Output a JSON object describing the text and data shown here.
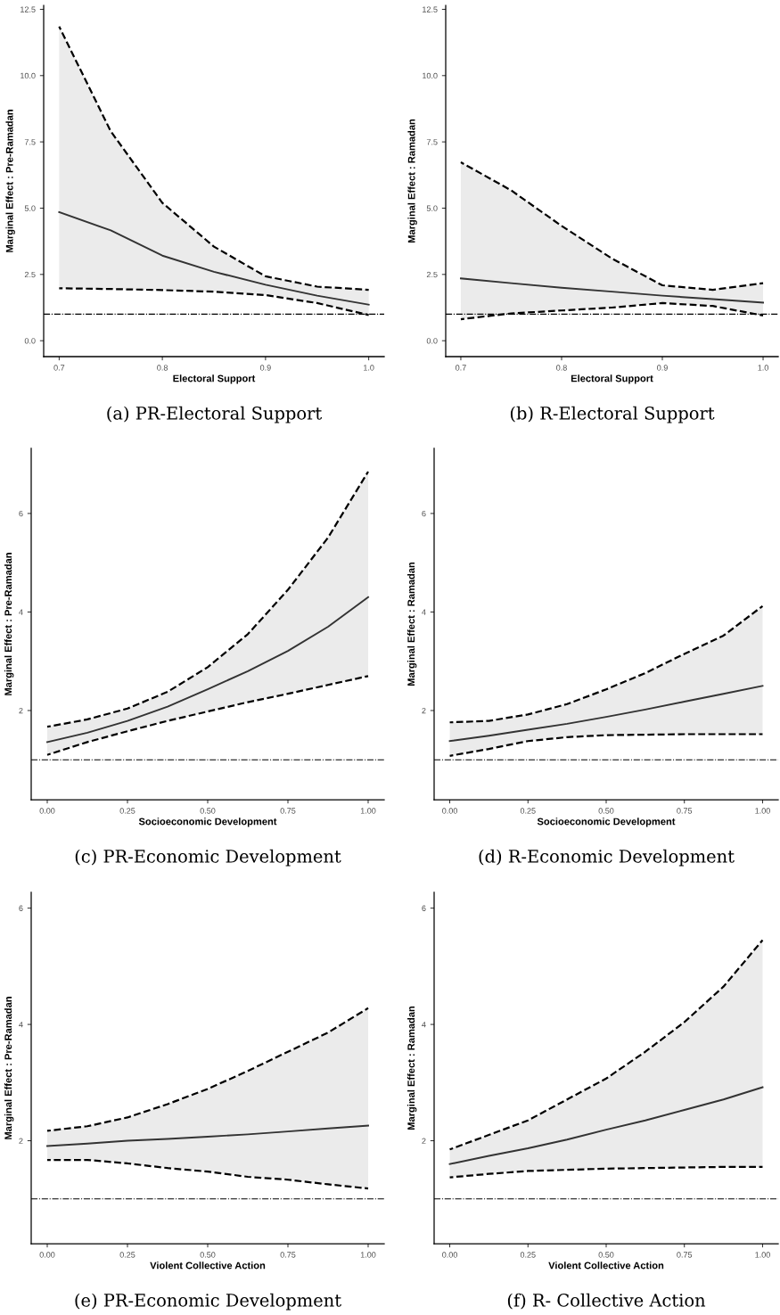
{
  "chart_data": [
    {
      "type": "line",
      "title": "(a) PR-Electoral Support",
      "xlabel": "Electoral Support",
      "ylabel": "Marginal Effect : Pre-Ramadan",
      "x": [
        0.7,
        0.75,
        0.8,
        0.85,
        0.9,
        0.95,
        1.0
      ],
      "series": [
        {
          "color": "#333333",
          "values": [
            4.85,
            4.16,
            3.21,
            2.6,
            2.11,
            1.7,
            1.36
          ],
          "lower": [
            1.98,
            1.95,
            1.91,
            1.85,
            1.72,
            1.42,
            0.97
          ],
          "upper": [
            11.85,
            7.9,
            5.2,
            3.55,
            2.43,
            2.04,
            1.92
          ]
        },
        {
          "color": "#000000",
          "line_style": "dashed",
          "values": [
            1.98,
            1.95,
            1.91,
            1.85,
            1.72,
            1.42,
            0.97
          ]
        },
        {
          "color": "#000000",
          "line_style": "dashed",
          "values": [
            11.85,
            7.9,
            5.2,
            3.55,
            2.43,
            2.04,
            1.92
          ]
        }
      ],
      "xlim": [
        0.685,
        1.015
      ],
      "xticks": [
        0.7,
        0.8,
        0.9,
        {
          "value": 1.0,
          "label": "1.0"
        }
      ],
      "ylim": [
        -0.6,
        12.65
      ],
      "yticks": [
        {
          "value": 0,
          "label": "0.0"
        },
        2.5,
        {
          "value": 5,
          "label": "5.0"
        },
        7.5,
        {
          "value": 10,
          "label": "10.0"
        },
        12.5
      ],
      "ref_lines": [
        {
          "axis": "y",
          "value": 1,
          "color": "#000000",
          "line_style": "dashdot"
        }
      ],
      "line_style": "solid",
      "grid": false,
      "legend": false
    },
    {
      "type": "line",
      "title": "(b) R-Electoral Support",
      "xlabel": "Electoral Support",
      "ylabel": "Marginal Effect : Ramadan",
      "x": [
        0.7,
        0.75,
        0.8,
        0.85,
        0.9,
        0.95,
        1.0
      ],
      "series": [
        {
          "color": "#333333",
          "values": [
            2.35,
            2.17,
            2.0,
            1.85,
            1.7,
            1.57,
            1.44
          ],
          "lower": [
            0.81,
            1.03,
            1.14,
            1.25,
            1.42,
            1.31,
            0.95
          ],
          "upper": [
            6.73,
            5.67,
            4.33,
            3.1,
            2.09,
            1.92,
            2.17
          ]
        },
        {
          "color": "#000000",
          "line_style": "dashed",
          "values": [
            0.81,
            1.03,
            1.14,
            1.25,
            1.42,
            1.31,
            0.95
          ]
        },
        {
          "color": "#000000",
          "line_style": "dashed",
          "values": [
            6.73,
            5.67,
            4.33,
            3.1,
            2.09,
            1.92,
            2.17
          ]
        }
      ],
      "xlim": [
        0.685,
        1.015
      ],
      "xticks": [
        0.7,
        0.8,
        0.9,
        {
          "value": 1.0,
          "label": "1.0"
        }
      ],
      "ylim": [
        -0.6,
        12.65
      ],
      "yticks": [
        {
          "value": 0,
          "label": "0.0"
        },
        2.5,
        {
          "value": 5,
          "label": "5.0"
        },
        7.5,
        {
          "value": 10,
          "label": "10.0"
        },
        12.5
      ],
      "ref_lines": [
        {
          "axis": "y",
          "value": 1,
          "color": "#000000",
          "line_style": "dashdot"
        }
      ],
      "line_style": "solid",
      "grid": false,
      "legend": false
    },
    {
      "type": "line",
      "title": "(c) PR-Economic Development",
      "xlabel": "Socioeconomic Development",
      "ylabel": "Marginal Effect : Pre-Ramadan",
      "x": [
        0,
        0.125,
        0.25,
        0.375,
        0.5,
        0.625,
        0.75,
        0.875,
        1.0
      ],
      "series": [
        {
          "color": "#333333",
          "values": [
            1.36,
            1.55,
            1.79,
            2.08,
            2.43,
            2.8,
            3.21,
            3.7,
            4.3
          ],
          "lower": [
            1.1,
            1.36,
            1.58,
            1.79,
            1.98,
            2.17,
            2.34,
            2.52,
            2.7
          ],
          "upper": [
            1.67,
            1.82,
            2.04,
            2.38,
            2.88,
            3.55,
            4.45,
            5.51,
            6.85
          ]
        },
        {
          "color": "#000000",
          "line_style": "dashed",
          "values": [
            1.1,
            1.36,
            1.58,
            1.79,
            1.98,
            2.17,
            2.34,
            2.52,
            2.7
          ]
        },
        {
          "color": "#000000",
          "line_style": "dashed",
          "values": [
            1.67,
            1.82,
            2.04,
            2.38,
            2.88,
            3.55,
            4.45,
            5.51,
            6.85
          ]
        }
      ],
      "xlim": [
        -0.05,
        1.05
      ],
      "xticks": [
        {
          "value": 0,
          "label": "0.00"
        },
        0.25,
        {
          "value": 0.5,
          "label": "0.50"
        },
        0.75,
        {
          "value": 1,
          "label": "1.00"
        }
      ],
      "ylim": [
        0.19,
        7.32
      ],
      "yticks": [
        2,
        4,
        6
      ],
      "ref_lines": [
        {
          "axis": "y",
          "value": 1,
          "color": "#000000",
          "line_style": "dashdot"
        }
      ],
      "line_style": "solid",
      "grid": false,
      "legend": false
    },
    {
      "type": "line",
      "title": "(d) R-Economic Development",
      "xlabel": "Socioeconomic Development",
      "ylabel": "Marginal Effect : Ramadan",
      "x": [
        0,
        0.125,
        0.25,
        0.375,
        0.5,
        0.625,
        0.75,
        0.875,
        1.0
      ],
      "series": [
        {
          "color": "#333333",
          "values": [
            1.38,
            1.49,
            1.61,
            1.73,
            1.87,
            2.02,
            2.18,
            2.34,
            2.5
          ],
          "lower": [
            1.08,
            1.22,
            1.38,
            1.46,
            1.5,
            1.51,
            1.52,
            1.52,
            1.52
          ],
          "upper": [
            1.76,
            1.79,
            1.92,
            2.13,
            2.43,
            2.76,
            3.15,
            3.52,
            4.12
          ]
        },
        {
          "color": "#000000",
          "line_style": "dashed",
          "values": [
            1.08,
            1.22,
            1.38,
            1.46,
            1.5,
            1.51,
            1.52,
            1.52,
            1.52
          ]
        },
        {
          "color": "#000000",
          "line_style": "dashed",
          "values": [
            1.76,
            1.79,
            1.92,
            2.13,
            2.43,
            2.76,
            3.15,
            3.52,
            4.12
          ]
        }
      ],
      "xlim": [
        -0.05,
        1.05
      ],
      "xticks": [
        {
          "value": 0,
          "label": "0.00"
        },
        0.25,
        {
          "value": 0.5,
          "label": "0.50"
        },
        0.75,
        {
          "value": 1,
          "label": "1.00"
        }
      ],
      "ylim": [
        0.19,
        7.32
      ],
      "yticks": [
        2,
        4,
        6
      ],
      "ref_lines": [
        {
          "axis": "y",
          "value": 1,
          "color": "#000000",
          "line_style": "dashdot"
        }
      ],
      "line_style": "solid",
      "grid": false,
      "legend": false
    },
    {
      "type": "line",
      "title": "(e) PR-Economic Development",
      "xlabel": "Violent Collective Action",
      "ylabel": "Marginal Effect : Pre-Ramadan",
      "x": [
        0,
        0.125,
        0.25,
        0.375,
        0.5,
        0.625,
        0.75,
        0.875,
        1.0
      ],
      "series": [
        {
          "color": "#333333",
          "values": [
            1.91,
            1.95,
            2.0,
            2.03,
            2.07,
            2.11,
            2.16,
            2.21,
            2.26
          ],
          "lower": [
            1.67,
            1.67,
            1.61,
            1.53,
            1.47,
            1.38,
            1.33,
            1.25,
            1.18
          ],
          "upper": [
            2.17,
            2.25,
            2.4,
            2.63,
            2.89,
            3.2,
            3.53,
            3.86,
            4.28
          ]
        },
        {
          "color": "#000000",
          "line_style": "dashed",
          "values": [
            1.67,
            1.67,
            1.61,
            1.53,
            1.47,
            1.38,
            1.33,
            1.25,
            1.18
          ]
        },
        {
          "color": "#000000",
          "line_style": "dashed",
          "values": [
            2.17,
            2.25,
            2.4,
            2.63,
            2.89,
            3.2,
            3.53,
            3.86,
            4.28
          ]
        }
      ],
      "xlim": [
        -0.05,
        1.05
      ],
      "xticks": [
        {
          "value": 0,
          "label": "0.00"
        },
        0.25,
        {
          "value": 0.5,
          "label": "0.50"
        },
        0.75,
        {
          "value": 1,
          "label": "1.00"
        }
      ],
      "ylim": [
        0.23,
        6.27
      ],
      "yticks": [
        2,
        4,
        6
      ],
      "ref_lines": [
        {
          "axis": "y",
          "value": 1,
          "color": "#000000",
          "line_style": "dashdot"
        }
      ],
      "line_style": "solid",
      "grid": false,
      "legend": false
    },
    {
      "type": "line",
      "title": "(f) R- Collective Action",
      "xlabel": "Violent Collective Action",
      "ylabel": "Marginal Effect : Ramadan",
      "x": [
        0,
        0.125,
        0.25,
        0.375,
        0.5,
        0.625,
        0.75,
        0.875,
        1.0
      ],
      "series": [
        {
          "color": "#333333",
          "values": [
            1.6,
            1.74,
            1.87,
            2.02,
            2.19,
            2.35,
            2.53,
            2.71,
            2.92
          ],
          "lower": [
            1.37,
            1.43,
            1.48,
            1.5,
            1.52,
            1.53,
            1.54,
            1.55,
            1.55
          ],
          "upper": [
            1.85,
            2.1,
            2.35,
            2.71,
            3.07,
            3.53,
            4.04,
            4.65,
            5.45
          ]
        },
        {
          "color": "#000000",
          "line_style": "dashed",
          "values": [
            1.37,
            1.43,
            1.48,
            1.5,
            1.52,
            1.53,
            1.54,
            1.55,
            1.55
          ]
        },
        {
          "color": "#000000",
          "line_style": "dashed",
          "values": [
            1.85,
            2.1,
            2.35,
            2.71,
            3.07,
            3.53,
            4.04,
            4.65,
            5.45
          ]
        }
      ],
      "xlim": [
        -0.05,
        1.05
      ],
      "xticks": [
        {
          "value": 0,
          "label": "0.00"
        },
        0.25,
        {
          "value": 0.5,
          "label": "0.50"
        },
        0.75,
        {
          "value": 1,
          "label": "1.00"
        }
      ],
      "ylim": [
        0.23,
        6.27
      ],
      "yticks": [
        2,
        4,
        6
      ],
      "ref_lines": [
        {
          "axis": "y",
          "value": 1,
          "color": "#000000",
          "line_style": "dashdot"
        }
      ],
      "line_style": "solid",
      "grid": false,
      "legend": false
    }
  ]
}
